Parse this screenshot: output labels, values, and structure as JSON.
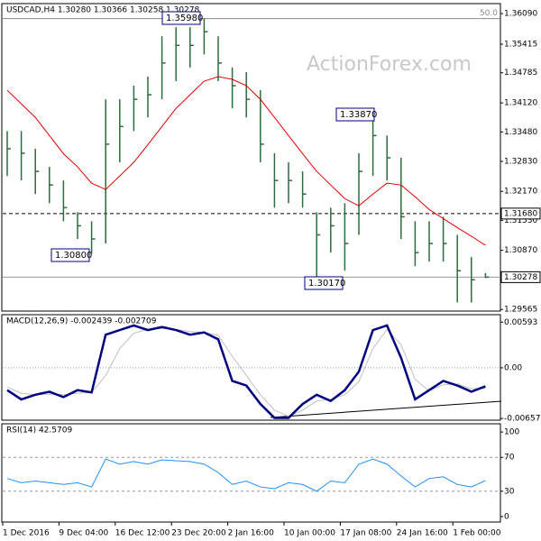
{
  "chart_data": [
    {
      "type": "ohlc",
      "title": "USDCAD,H4 1.30280 1.30366 1.30258 1.30278",
      "watermark": "ActionForex.com",
      "color": "#2e6b3e",
      "categories": [
        "1 Dec 2016",
        null,
        null,
        null,
        "9 Dec 04:00",
        null,
        null,
        null,
        "16 Dec 12:00",
        null,
        null,
        null,
        "23 Dec 20:00",
        null,
        null,
        null,
        "2 Jan 16:00",
        null,
        null,
        null,
        "10 Jan 00:00",
        null,
        null,
        null,
        "17 Jan 08:00",
        null,
        null,
        null,
        "24 Jan 16:00",
        null,
        null,
        null,
        "1 Feb 00:00",
        null,
        null
      ],
      "high": [
        1.335,
        1.335,
        1.3311,
        1.3271,
        1.3241,
        1.3171,
        1.3151,
        1.342,
        1.342,
        1.345,
        1.347,
        1.3559,
        1.3579,
        1.3579,
        1.3598,
        1.3559,
        1.349,
        1.348,
        1.344,
        1.3301,
        1.3281,
        1.3261,
        1.3171,
        1.3181,
        1.3191,
        1.3301,
        1.3387,
        1.334,
        1.3291,
        1.3151,
        1.3151,
        1.3161,
        1.3121,
        1.3072,
        1.30366
      ],
      "low": [
        1.3251,
        1.3241,
        1.3211,
        1.3191,
        1.3151,
        1.3112,
        1.308,
        1.3102,
        1.3281,
        1.335,
        1.338,
        1.342,
        1.346,
        1.349,
        1.3519,
        1.346,
        1.34,
        1.338,
        1.3281,
        1.3181,
        1.3191,
        1.3181,
        1.3017,
        1.3082,
        1.3042,
        1.3121,
        1.3251,
        1.3241,
        1.3112,
        1.3052,
        1.3062,
        1.3062,
        1.2972,
        1.2972,
        1.30258
      ],
      "close": [
        1.3311,
        1.3301,
        1.3261,
        1.3231,
        1.3181,
        1.3141,
        1.3112,
        1.3321,
        1.336,
        1.342,
        1.343,
        1.35,
        1.3539,
        1.3539,
        1.3569,
        1.35,
        1.345,
        1.342,
        1.3321,
        1.3241,
        1.3241,
        1.3211,
        1.3121,
        1.3141,
        1.3102,
        1.3261,
        1.334,
        1.3291,
        1.3161,
        1.3082,
        1.3102,
        1.3102,
        1.3042,
        1.3022,
        1.30278
      ],
      "series": [
        {
          "color": "#e00000",
          "values": [
            1.344,
            1.341,
            1.338,
            1.334,
            1.33,
            1.3271,
            1.3235,
            1.3221,
            1.3251,
            1.3281,
            1.332,
            1.336,
            1.34,
            1.343,
            1.346,
            1.347,
            1.3464,
            1.345,
            1.342,
            1.338,
            1.334,
            1.33,
            1.3261,
            1.3231,
            1.3201,
            1.3185,
            1.3211,
            1.3235,
            1.3231,
            1.3205,
            1.3177,
            1.3157,
            1.3137,
            1.3118,
            1.3098
          ]
        }
      ],
      "ylim": [
        1.2953,
        1.3631
      ],
      "yticks": [
        {
          "value": 1.3609,
          "label": "1.36090"
        },
        {
          "value": 1.35415,
          "label": "1.35415"
        },
        {
          "value": 1.34785,
          "label": "1.34785"
        },
        {
          "value": 1.3412,
          "label": "1.34120"
        },
        {
          "value": 1.3348,
          "label": "1.33480"
        },
        {
          "value": 1.3283,
          "label": "1.32830"
        },
        {
          "value": 1.3217,
          "label": "1.32170"
        },
        {
          "value": 1.3153,
          "label": "1.31530"
        },
        {
          "value": 1.3087,
          "label": "1.30870"
        },
        {
          "value": 1.29565,
          "label": "1.29565"
        }
      ],
      "levels": [
        {
          "value": 1.3168,
          "label": "1.31680"
        },
        {
          "value": 1.30278,
          "label": "1.30278"
        }
      ],
      "fib_level": {
        "value": 1.3598,
        "label": "50.0"
      },
      "annotations": [
        "1.35980",
        "1.33870",
        "1.30800",
        "1.30170"
      ]
    },
    {
      "type": "line",
      "title": "MACD(12,26,9) -0.002439 -0.002709",
      "series": [
        {
          "color": "#c0c0c0",
          "values": [
            -0.0025,
            -0.0033,
            -0.0035,
            -0.0034,
            -0.0035,
            -0.0033,
            -0.0032,
            -0.001,
            0.0025,
            0.0045,
            0.005,
            0.0051,
            0.005,
            0.0047,
            0.0046,
            0.0042,
            0.0015,
            -0.001,
            -0.0035,
            -0.0055,
            -0.0063,
            -0.0055,
            -0.0043,
            -0.0041,
            -0.0035,
            -0.0018,
            0.0025,
            0.005,
            0.003,
            -0.0015,
            -0.003,
            -0.0022,
            -0.0021,
            -0.0027,
            -0.0027
          ]
        },
        {
          "color": "#000080",
          "values": [
            -0.0029,
            -0.0041,
            -0.0035,
            -0.0031,
            -0.0038,
            -0.0029,
            -0.0032,
            0.0043,
            0.0049,
            0.0055,
            0.0049,
            0.0053,
            0.0049,
            0.0043,
            0.0046,
            0.0037,
            -0.0017,
            -0.0023,
            -0.0047,
            -0.0065,
            -0.0065,
            -0.0047,
            -0.0035,
            -0.0043,
            -0.0029,
            -0.0005,
            0.0049,
            0.0055,
            0.0013,
            -0.0041,
            -0.0029,
            -0.0017,
            -0.0023,
            -0.0031,
            -0.0024
          ]
        }
      ],
      "ylim": [
        -0.0068,
        0.0069
      ],
      "yticks": [
        0.00593,
        {
          "value": 0,
          "label": "0.00"
        },
        -0.006575
      ]
    },
    {
      "type": "line",
      "title": "RSI(14) 42.5709",
      "series": [
        {
          "color": "#1e90ff",
          "values": [
            45,
            40,
            42,
            40,
            38,
            40,
            35,
            68,
            62,
            65,
            62,
            67,
            66,
            65,
            62,
            52,
            38,
            42,
            35,
            33,
            40,
            38,
            30,
            42,
            40,
            62,
            68,
            62,
            48,
            35,
            45,
            47,
            38,
            35,
            42.57
          ]
        }
      ],
      "ylim": [
        -6.5,
        109.7
      ],
      "yticks": [
        100,
        70,
        30,
        0
      ]
    }
  ]
}
